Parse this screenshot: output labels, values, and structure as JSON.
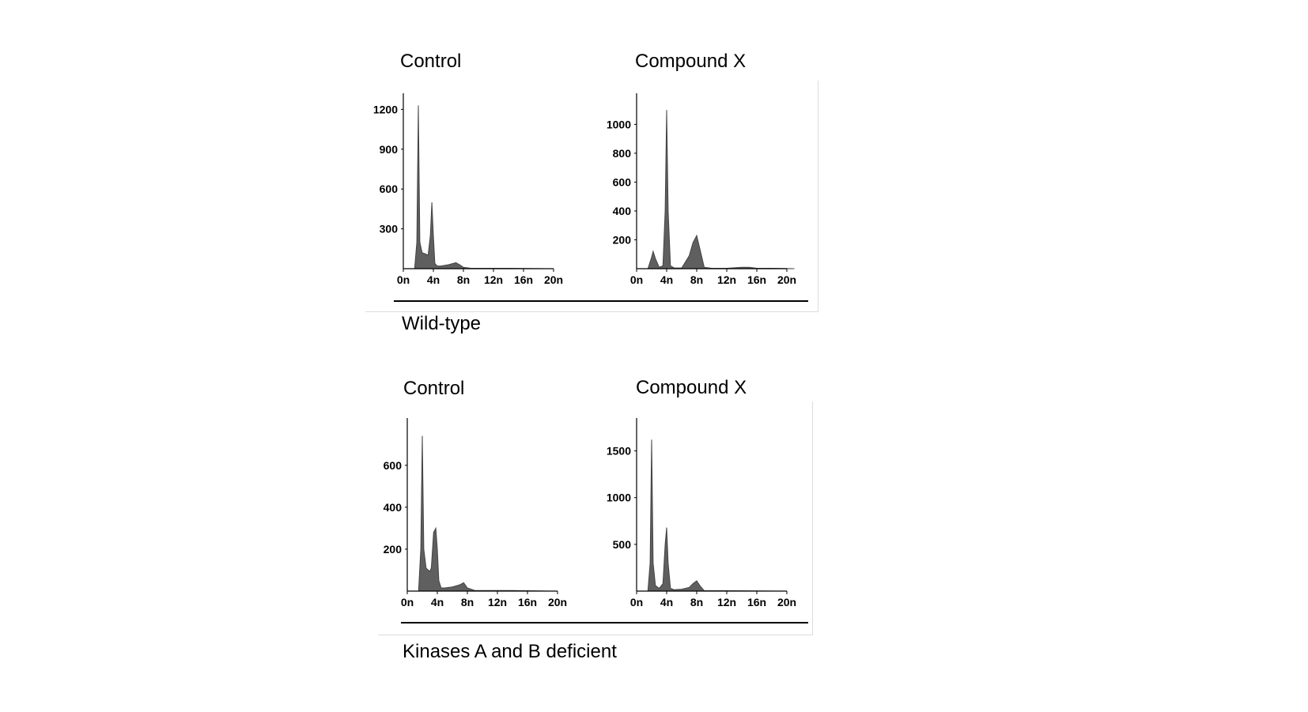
{
  "colors": {
    "fill": "#5f5f5f",
    "axis": "#000000"
  },
  "groups": [
    {
      "label": "Wild-type"
    },
    {
      "label": "Kinases A and B deficient"
    }
  ],
  "chart_data": [
    {
      "type": "area",
      "title": "Control",
      "group": "Wild-type",
      "xticks": [
        "0n",
        "4n",
        "8n",
        "12n",
        "16n",
        "20n"
      ],
      "xlim": [
        0,
        20
      ],
      "yticks": [
        300,
        600,
        900,
        1200
      ],
      "ylim": [
        0,
        1250
      ],
      "x": [
        1.5,
        1.8,
        2.0,
        2.2,
        2.5,
        3.0,
        3.3,
        3.6,
        3.8,
        4.0,
        4.2,
        4.5,
        5.0,
        6.0,
        7.0,
        7.5,
        8.0,
        9.0,
        14.0,
        19.0
      ],
      "y": [
        0,
        200,
        1230,
        200,
        120,
        110,
        100,
        250,
        500,
        250,
        40,
        20,
        20,
        30,
        45,
        30,
        10,
        3,
        3,
        0
      ]
    },
    {
      "type": "area",
      "title": "Compound X",
      "group": "Wild-type",
      "xticks": [
        "0n",
        "4n",
        "8n",
        "12n",
        "16n",
        "20n"
      ],
      "xlim": [
        0,
        20
      ],
      "yticks": [
        200,
        400,
        600,
        800,
        1000
      ],
      "ylim": [
        0,
        1150
      ],
      "x": [
        1.5,
        2.0,
        2.2,
        2.5,
        3.0,
        3.5,
        3.8,
        4.0,
        4.2,
        4.5,
        5.0,
        6.0,
        7.0,
        7.5,
        8.0,
        8.5,
        9.0,
        10.0,
        12.0,
        14.0,
        15.0,
        16.0,
        18.0,
        21.0
      ],
      "y": [
        0,
        80,
        120,
        70,
        10,
        20,
        400,
        1100,
        400,
        20,
        5,
        5,
        90,
        180,
        230,
        120,
        10,
        3,
        3,
        10,
        10,
        3,
        3,
        0
      ]
    },
    {
      "type": "area",
      "title": "Control",
      "group": "Kinases A and B deficient",
      "xticks": [
        "0n",
        "4n",
        "8n",
        "12n",
        "16n",
        "20n"
      ],
      "xlim": [
        0,
        20
      ],
      "yticks": [
        200,
        400,
        600
      ],
      "ylim": [
        0,
        780
      ],
      "x": [
        1.5,
        1.8,
        2.0,
        2.2,
        2.5,
        2.8,
        3.0,
        3.2,
        3.5,
        3.8,
        4.0,
        4.2,
        4.5,
        5.0,
        6.0,
        7.0,
        7.5,
        8.0,
        9.0,
        14.0,
        19.0
      ],
      "y": [
        0,
        200,
        740,
        200,
        110,
        100,
        95,
        110,
        280,
        300,
        200,
        50,
        15,
        15,
        20,
        30,
        40,
        15,
        3,
        3,
        0
      ]
    },
    {
      "type": "area",
      "title": "Compound X",
      "group": "Kinases A and B deficient",
      "xticks": [
        "0n",
        "4n",
        "8n",
        "12n",
        "16n",
        "20n"
      ],
      "xlim": [
        0,
        20
      ],
      "yticks": [
        500,
        1000,
        1500
      ],
      "ylim": [
        0,
        1750
      ],
      "x": [
        1.5,
        1.8,
        2.0,
        2.2,
        2.5,
        3.0,
        3.5,
        3.8,
        4.0,
        4.2,
        4.5,
        5.0,
        6.0,
        7.0,
        7.5,
        8.0,
        8.5,
        9.0,
        14.0,
        19.0
      ],
      "y": [
        0,
        300,
        1620,
        300,
        60,
        30,
        80,
        500,
        680,
        300,
        30,
        15,
        20,
        40,
        80,
        110,
        50,
        5,
        3,
        0
      ]
    }
  ]
}
